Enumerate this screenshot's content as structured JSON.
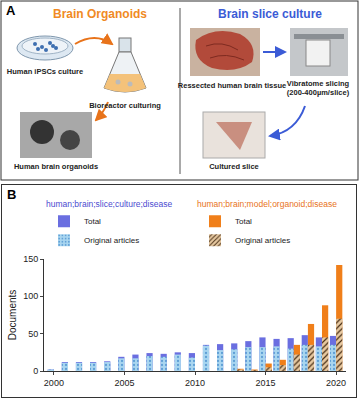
{
  "diagram": {
    "label": "A",
    "left": {
      "title": "Brain Organoids",
      "color": "#f08a24",
      "steps": [
        {
          "label": [
            "Human iPSCs culture"
          ]
        },
        {
          "label": [
            "Bioreactor culturing"
          ]
        },
        {
          "label": [
            "Human brain organoids"
          ]
        }
      ]
    },
    "right": {
      "title": "Brain slice culture",
      "color": "#3b5bd6",
      "steps": [
        {
          "label": [
            "Ressected human brain tissue"
          ]
        },
        {
          "label": [
            "Vibratome slicing",
            "(200-400µm/slice)"
          ]
        },
        {
          "label": [
            "Cultured slice"
          ]
        }
      ]
    }
  },
  "chart_label": "B",
  "chart_data": {
    "type": "bar",
    "ylabel": "Documents",
    "x": [
      2000,
      2001,
      2002,
      2003,
      2004,
      2005,
      2006,
      2007,
      2008,
      2009,
      2010,
      2011,
      2012,
      2013,
      2014,
      2015,
      2016,
      2017,
      2018,
      2019,
      2020
    ],
    "xlim": [
      1999.3,
      2020.7
    ],
    "xticks": [
      2000,
      2005,
      2010,
      2015,
      2020
    ],
    "ylim": [
      0,
      150
    ],
    "yticks": [
      0,
      50,
      100,
      150
    ],
    "grid": false,
    "legend": "top left",
    "groups": [
      {
        "name": "human;brain;slice;culture;disease",
        "color": "#4b4bd0",
        "series": [
          {
            "name": "Total",
            "color": "#6a6ee0",
            "values": [
              2,
              12,
              12,
              12,
              13,
              19,
              22,
              24,
              23,
              25,
              24,
              35,
              36,
              37,
              40,
              45,
              43,
              44,
              48,
              45,
              47
            ]
          },
          {
            "name": "Original articles",
            "color": "#a9d6f0",
            "marker": "dotted",
            "values": [
              2,
              11,
              11,
              11,
              12,
              17,
              17,
              20,
              19,
              22,
              18,
              34,
              28,
              29,
              32,
              32,
              33,
              30,
              35,
              33,
              35
            ]
          }
        ]
      },
      {
        "name": "human;brain;model;organoid;disease",
        "color": "#e8731a",
        "series": [
          {
            "name": "Total",
            "color": "#f07f1a",
            "values": [
              null,
              null,
              null,
              null,
              null,
              null,
              null,
              null,
              null,
              null,
              null,
              null,
              null,
              3,
              2,
              10,
              15,
              35,
              63,
              88,
              142
            ]
          },
          {
            "name": "Original articles",
            "color": "#e6c8a0",
            "marker": "hatched",
            "values": [
              null,
              null,
              null,
              null,
              null,
              null,
              null,
              null,
              null,
              null,
              null,
              null,
              null,
              2,
              1,
              5,
              8,
              22,
              35,
              45,
              70
            ]
          }
        ]
      }
    ]
  }
}
